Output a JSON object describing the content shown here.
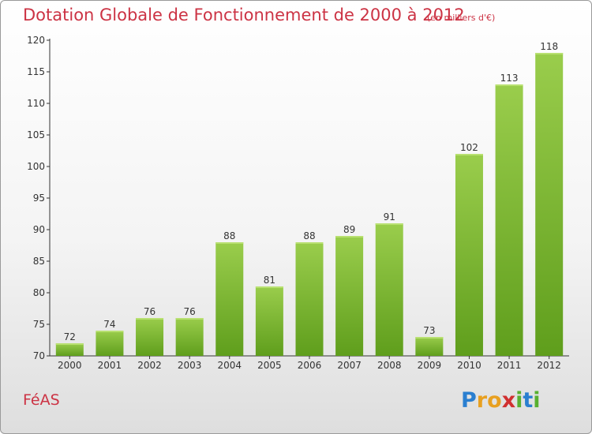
{
  "chart_data": {
    "type": "bar",
    "title": "Dotation Globale de Fonctionnement de 2000 à 2012",
    "subtitle": "(en milliers d'€)",
    "categories": [
      "2000",
      "2001",
      "2002",
      "2003",
      "2004",
      "2005",
      "2006",
      "2007",
      "2008",
      "2009",
      "2010",
      "2011",
      "2012"
    ],
    "values": [
      72,
      74,
      76,
      76,
      88,
      81,
      88,
      89,
      91,
      73,
      102,
      113,
      118
    ],
    "ylim": [
      70,
      120
    ],
    "yticks": [
      70,
      75,
      80,
      85,
      90,
      95,
      100,
      105,
      110,
      115,
      120
    ],
    "grid": false,
    "bar_color_top": "#9acd4c",
    "bar_color_bottom": "#5f9e1c"
  },
  "footer": {
    "commune": "FéAS",
    "logo_letters": [
      {
        "ch": "P",
        "color": "#2a7fd0"
      },
      {
        "ch": "r",
        "color": "#e8a020"
      },
      {
        "ch": "o",
        "color": "#e8a020"
      },
      {
        "ch": "x",
        "color": "#d03030"
      },
      {
        "ch": "i",
        "color": "#58b030"
      },
      {
        "ch": "t",
        "color": "#2a7fd0"
      },
      {
        "ch": "i",
        "color": "#58b030"
      }
    ]
  },
  "colors": {
    "title": "#cc3344",
    "axis": "#333333"
  }
}
